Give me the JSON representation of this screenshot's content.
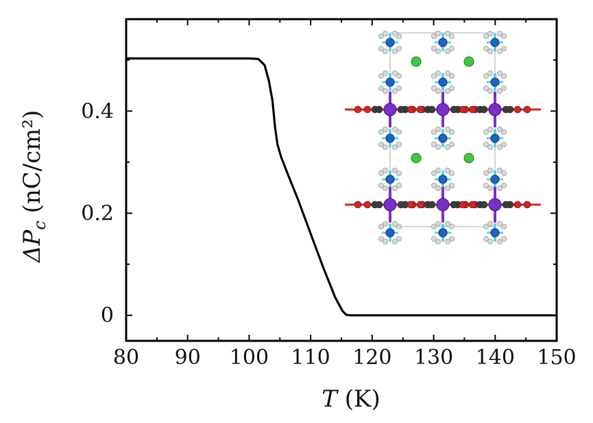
{
  "chart_data": {
    "type": "line",
    "xlabel": "T (K)",
    "xlabel_var": "T",
    "xlabel_unit": " (K)",
    "ylabel": "ΔP_c (nC/cm²)",
    "ylabel_var": "ΔP",
    "ylabel_sub": "c",
    "ylabel_unit": " (nC/cm²)",
    "xlim": [
      80,
      150
    ],
    "ylim": [
      -0.05,
      0.58
    ],
    "x_ticks": [
      80,
      90,
      100,
      110,
      120,
      130,
      140,
      150
    ],
    "x_tick_labels": [
      "80",
      "90",
      "100",
      "110",
      "120",
      "130",
      "140",
      "150"
    ],
    "y_ticks": [
      0,
      0.2,
      0.4
    ],
    "y_tick_labels": [
      "0",
      "0.2",
      "0.4"
    ],
    "grid": false,
    "legend": "none",
    "series": [
      {
        "color": "#000000",
        "x": [
          80,
          100,
          101.5,
          102.5,
          103.2,
          103.8,
          104.2,
          104.6,
          105.2,
          106,
          108,
          110,
          112,
          114,
          115.2,
          115.8,
          116.5,
          120,
          130,
          140,
          150
        ],
        "y": [
          0.503,
          0.503,
          0.502,
          0.49,
          0.46,
          0.42,
          0.37,
          0.335,
          0.31,
          0.285,
          0.225,
          0.16,
          0.095,
          0.035,
          0.008,
          0.001,
          0,
          0,
          0,
          0,
          0
        ]
      }
    ]
  },
  "inset": {
    "description": "crystal structure",
    "colors": {
      "metal": "#7a2fc9",
      "oxygen": "#e0201c",
      "carbon": "#3c3c3c",
      "nitrogen": "#1e63c8",
      "bond": "#4fd8e6",
      "hydrogen": "#d9d9d9",
      "chlorine": "#3ec83e"
    }
  }
}
